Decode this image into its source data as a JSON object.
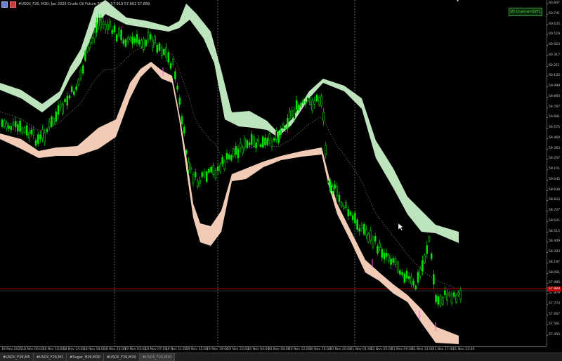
{
  "window": {
    "title": "#USOil_F26, M30:  Jan 2026 Crude Oil Future  57.689 57.919 57.602 57.889",
    "indicator_button": "SD Channel-D2F1"
  },
  "colors": {
    "bullish_candle": "#00e000",
    "bearish_candle": "#00e000",
    "upper_band": "#c8f0c8",
    "lower_band": "#ffd6c0",
    "midline": "#7a7a7a",
    "price_line": "#b00000",
    "grid_separator": "#7a7a7a",
    "magenta_wick": "#ff5cff"
  },
  "y_axis": {
    "ticks": [
      "60.847",
      "60.741",
      "60.635",
      "60.529",
      "60.423",
      "60.317",
      "60.211",
      "60.105",
      "59.999",
      "59.893",
      "59.787",
      "59.681",
      "59.575",
      "59.469",
      "59.363",
      "59.257",
      "59.151",
      "59.045",
      "58.939",
      "58.833",
      "58.727",
      "58.621",
      "58.515",
      "58.409",
      "58.303",
      "58.197",
      "58.091",
      "57.985",
      "57.879",
      "57.773",
      "57.667",
      "57.561",
      "57.455"
    ],
    "current_price": "57.889"
  },
  "x_axis": {
    "ticks": [
      "18 Nov 2025",
      "18 Nov 06:00",
      "18 Nov 10:00",
      "18 Nov 14:00",
      "18 Nov 18:00",
      "18 Nov 22:00",
      "19 Nov 03:00",
      "19 Nov 07:00",
      "19 Nov 11:00",
      "19 Nov 15:00",
      "19 Nov 19:00",
      "19 Nov 23:00",
      "20 Nov 04:00",
      "20 Nov 08:00",
      "20 Nov 12:00",
      "20 Nov 16:00",
      "20 Nov 20:00",
      "21 Nov 01:00",
      "21 Nov 05:00",
      "21 Nov 09:00",
      "21 Nov 13:00",
      "21 Nov 17:00",
      "21 Nov 21:00"
    ]
  },
  "tabs": [
    {
      "label": "#USOil_F26,M5",
      "active": false
    },
    {
      "label": "#USOil_F26,M1",
      "active": false
    },
    {
      "label": "#Sugar_H26,M30",
      "active": false
    },
    {
      "label": "#USOil_F26,M30",
      "active": false
    },
    {
      "label": "#USOil_F26,M30",
      "active": true
    }
  ]
}
